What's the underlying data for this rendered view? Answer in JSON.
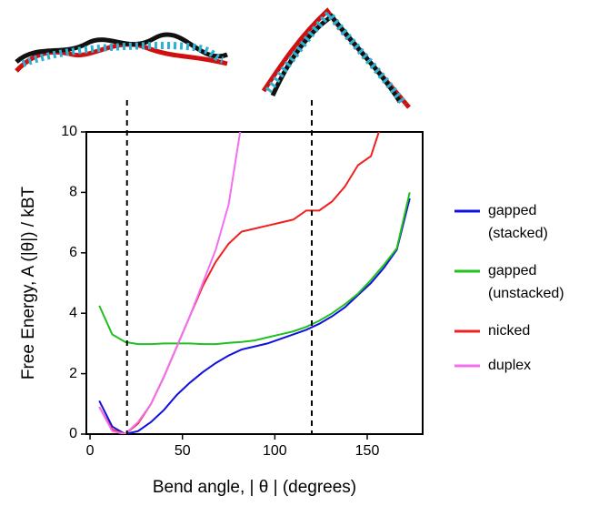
{
  "chart_data": {
    "type": "line",
    "xlabel": "Bend angle, | θ | (degrees)",
    "ylabel": "Free Energy, A (|θ|) / kBT",
    "x": [
      5,
      12,
      19,
      26,
      33,
      40,
      47,
      54,
      61,
      68,
      75,
      82,
      89,
      96,
      103,
      110,
      117,
      124,
      131,
      138,
      145,
      152,
      159,
      166,
      173
    ],
    "series": [
      {
        "name": "gapped (stacked)",
        "color": "#1010e0",
        "values": [
          1.1,
          0.25,
          0.0,
          0.1,
          0.4,
          0.8,
          1.3,
          1.7,
          2.05,
          2.35,
          2.6,
          2.8,
          2.9,
          3.0,
          3.15,
          3.3,
          3.45,
          3.65,
          3.9,
          4.2,
          4.6,
          5.0,
          5.5,
          6.1,
          7.8
        ]
      },
      {
        "name": "gapped (unstacked)",
        "color": "#20c020",
        "values": [
          4.25,
          3.3,
          3.05,
          2.98,
          2.98,
          3.0,
          3.0,
          3.0,
          2.98,
          2.98,
          3.02,
          3.05,
          3.1,
          3.2,
          3.3,
          3.4,
          3.55,
          3.75,
          4.0,
          4.3,
          4.65,
          5.1,
          5.6,
          6.15,
          8.0
        ]
      },
      {
        "name": "nicked",
        "color": "#f02020",
        "values": [
          0.9,
          0.15,
          0.0,
          0.35,
          1.0,
          1.9,
          2.9,
          3.9,
          4.9,
          5.7,
          6.3,
          6.7,
          6.8,
          6.9,
          7.0,
          7.1,
          7.4,
          7.4,
          7.7,
          8.2,
          8.9,
          9.2,
          10.5,
          null,
          null
        ]
      },
      {
        "name": "duplex",
        "color": "#f070f0",
        "values": [
          0.9,
          0.1,
          0.0,
          0.4,
          1.0,
          1.9,
          2.9,
          3.9,
          5.0,
          6.1,
          7.6,
          10.3,
          null,
          null,
          null,
          null,
          null,
          null,
          null,
          null,
          null,
          null,
          null,
          null,
          null
        ]
      }
    ],
    "vlines": [
      20,
      120
    ],
    "xlim": [
      -2,
      180
    ],
    "ylim": [
      0,
      10
    ],
    "xticks": [
      0,
      50,
      100,
      150
    ],
    "yticks": [
      0,
      2,
      4,
      6,
      8,
      10
    ]
  }
}
